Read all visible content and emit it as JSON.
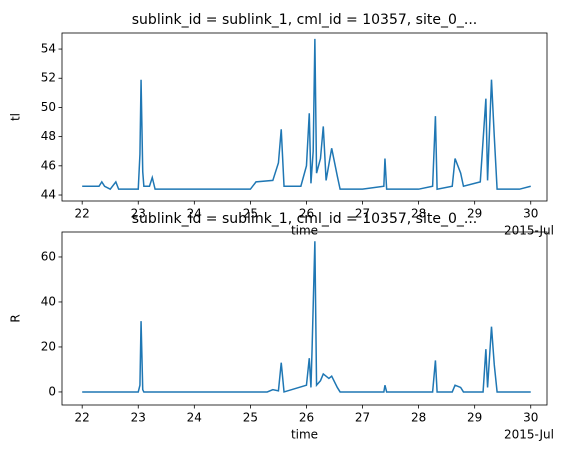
{
  "chart_data": [
    {
      "type": "line",
      "title": "sublink_id = sublink_1, cml_id = 10357, site_0_...",
      "x_label": "time",
      "y_label": "tl",
      "x_offset_label": "2015-Jul",
      "color": "#1f77b4",
      "x": [
        22.0,
        22.3,
        22.35,
        22.4,
        22.5,
        22.6,
        22.65,
        23.0,
        23.03,
        23.05,
        23.08,
        23.1,
        23.2,
        23.25,
        23.3,
        24.0,
        24.5,
        25.0,
        25.1,
        25.4,
        25.5,
        25.55,
        25.6,
        25.9,
        26.0,
        26.05,
        26.08,
        26.12,
        26.15,
        26.18,
        26.25,
        26.3,
        26.35,
        26.45,
        26.55,
        26.6,
        27.0,
        27.38,
        27.4,
        27.43,
        28.0,
        28.25,
        28.3,
        28.33,
        28.6,
        28.65,
        28.75,
        28.8,
        29.1,
        29.2,
        29.23,
        29.3,
        29.35,
        29.4,
        29.8,
        30.0
      ],
      "values": [
        44.6,
        44.6,
        44.9,
        44.6,
        44.4,
        44.9,
        44.4,
        44.4,
        46.8,
        51.9,
        45.6,
        44.6,
        44.6,
        45.2,
        44.4,
        44.4,
        44.4,
        44.4,
        44.9,
        45.0,
        46.2,
        48.5,
        44.6,
        44.6,
        46.0,
        49.6,
        44.8,
        47.0,
        54.7,
        45.5,
        46.5,
        48.7,
        45.0,
        47.2,
        45.3,
        44.4,
        44.4,
        44.6,
        46.5,
        44.4,
        44.4,
        44.6,
        49.4,
        44.4,
        44.6,
        46.5,
        45.5,
        44.6,
        44.9,
        50.6,
        45.0,
        51.9,
        48.0,
        44.4,
        44.4,
        44.6
      ],
      "xlim": [
        21.64,
        30.29
      ],
      "xticks": [
        22,
        23,
        24,
        25,
        26,
        27,
        28,
        29,
        30
      ],
      "ylim": [
        43.59,
        55.1
      ],
      "yticks": [
        44,
        46,
        48,
        50,
        52,
        54
      ]
    },
    {
      "type": "line",
      "title": "sublink_id = sublink_1, cml_id = 10357, site_0_...",
      "x_label": "time",
      "y_label": "R",
      "x_offset_label": "2015-Jul",
      "color": "#1f77b4",
      "x": [
        22.0,
        23.0,
        23.03,
        23.05,
        23.08,
        23.1,
        25.3,
        25.4,
        25.5,
        25.55,
        25.6,
        26.0,
        26.05,
        26.08,
        26.1,
        26.15,
        26.18,
        26.25,
        26.3,
        26.4,
        26.45,
        26.55,
        26.6,
        27.38,
        27.4,
        27.43,
        28.25,
        28.3,
        28.33,
        28.6,
        28.65,
        28.75,
        28.8,
        29.15,
        29.2,
        29.23,
        29.3,
        29.35,
        29.4,
        30.0
      ],
      "values": [
        0,
        0,
        3,
        31.5,
        1,
        0,
        0,
        1,
        0.5,
        13,
        0,
        3,
        15,
        2,
        19,
        67,
        3,
        5,
        8,
        6,
        7,
        2,
        0,
        0,
        3,
        0,
        0,
        14,
        0,
        0,
        3,
        2,
        0,
        0,
        19,
        2,
        29,
        12,
        0,
        0
      ],
      "xlim": [
        21.64,
        30.29
      ],
      "xticks": [
        22,
        23,
        24,
        25,
        26,
        27,
        28,
        29,
        30
      ],
      "ylim": [
        -5.8,
        71.1
      ],
      "yticks": [
        0,
        20,
        40,
        60
      ]
    }
  ]
}
